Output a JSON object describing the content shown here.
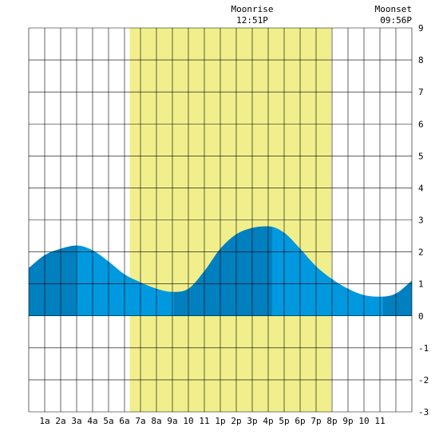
{
  "chart_data": {
    "type": "area",
    "title": "",
    "xlabel": "",
    "ylabel": "",
    "x_unit": "hours",
    "xlim": [
      0,
      24
    ],
    "ylim": [
      -3,
      9
    ],
    "y_ticks": [
      -3,
      -2,
      -1,
      0,
      1,
      2,
      3,
      4,
      5,
      6,
      7,
      8,
      9
    ],
    "x_tick_labels": [
      {
        "x": 1,
        "label": "1a"
      },
      {
        "x": 2,
        "label": "2a"
      },
      {
        "x": 3,
        "label": "3a"
      },
      {
        "x": 4,
        "label": "4a"
      },
      {
        "x": 5,
        "label": "5a"
      },
      {
        "x": 6,
        "label": "6a"
      },
      {
        "x": 7,
        "label": "7a"
      },
      {
        "x": 8,
        "label": "8a"
      },
      {
        "x": 9,
        "label": "9a"
      },
      {
        "x": 10,
        "label": "10"
      },
      {
        "x": 11,
        "label": "11"
      },
      {
        "x": 12,
        "label": "1p"
      },
      {
        "x": 13,
        "label": "2p"
      },
      {
        "x": 14,
        "label": "3p"
      },
      {
        "x": 15,
        "label": "4p"
      },
      {
        "x": 16,
        "label": "5p"
      },
      {
        "x": 17,
        "label": "6p"
      },
      {
        "x": 18,
        "label": "7p"
      },
      {
        "x": 19,
        "label": "8p"
      },
      {
        "x": 20,
        "label": "9p"
      },
      {
        "x": 21,
        "label": "10"
      },
      {
        "x": 22,
        "label": "11"
      }
    ],
    "grid": true,
    "daylight": {
      "start": 6.33,
      "end": 18.95,
      "color": "#f0ef8c"
    },
    "tide_extremes": [
      {
        "x": 2.95,
        "y": 2.2,
        "kind": "high"
      },
      {
        "x": 9.1,
        "y": 0.75,
        "kind": "low"
      },
      {
        "x": 15.25,
        "y": 2.8,
        "kind": "high"
      },
      {
        "x": 22.2,
        "y": 0.6,
        "kind": "low"
      }
    ],
    "series": [
      {
        "x": [
          0,
          1,
          2,
          3,
          4,
          5,
          6,
          7,
          8,
          9,
          10,
          11,
          12,
          13,
          14,
          15,
          16,
          17,
          18,
          19,
          20,
          21,
          22,
          23,
          24
        ],
        "y": [
          1.5,
          1.9,
          2.1,
          2.2,
          2.05,
          1.7,
          1.3,
          1.05,
          0.85,
          0.75,
          0.85,
          1.4,
          2.1,
          2.55,
          2.75,
          2.8,
          2.6,
          2.1,
          1.55,
          1.15,
          0.85,
          0.65,
          0.6,
          0.7,
          1.1
        ]
      }
    ],
    "colors": {
      "tide_light": "#0099e0",
      "tide_dark": "#0080bf",
      "grid": "#000000"
    },
    "annotations": [
      {
        "x": 14,
        "lines": [
          "Moonrise",
          "12:51P"
        ]
      },
      {
        "x": 24,
        "lines": [
          "Moonset",
          "09:56P"
        ]
      }
    ]
  }
}
